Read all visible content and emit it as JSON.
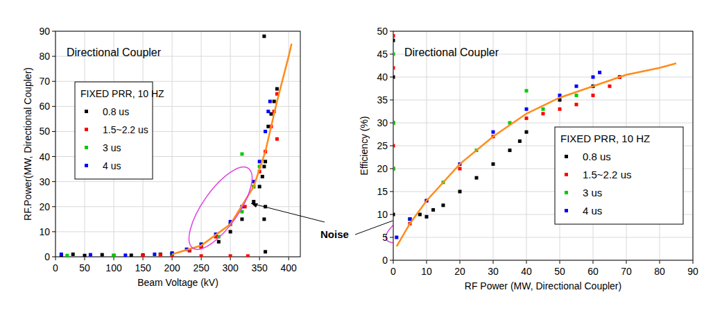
{
  "chart_data": [
    {
      "type": "scatter",
      "title": "Directional Coupler",
      "x_label": "Beam Voltage (kV)",
      "y_label": "RF.Power(MW, Directional Coupler)",
      "legend_title": "FIXED PRR, 10 HZ",
      "legend": "upper left",
      "grid": true,
      "annotations": [
        "Noise"
      ],
      "xlim": [
        0,
        420
      ],
      "xticks": [
        0,
        50,
        100,
        150,
        200,
        250,
        300,
        350,
        400
      ],
      "ylim": [
        0,
        90
      ],
      "yticks": [
        0,
        10,
        20,
        30,
        40,
        50,
        60,
        70,
        80,
        90
      ],
      "series": [
        {
          "name": "0.8 us",
          "color": "#000000",
          "marker": "square",
          "x": [
            10,
            30,
            50,
            80,
            100,
            130,
            150,
            180,
            200,
            230,
            250,
            280,
            300,
            320,
            340,
            350,
            355,
            358,
            360,
            360,
            358,
            360,
            365,
            370,
            375,
            380,
            358
          ],
          "values": [
            0.5,
            1,
            0.5,
            0.8,
            0.5,
            0.6,
            0.7,
            1,
            1.2,
            2.5,
            4,
            6,
            10,
            15,
            22,
            28,
            32,
            36,
            38,
            20,
            15,
            2,
            52,
            57,
            62,
            67,
            88
          ]
        },
        {
          "name": "1.5~2.2 us",
          "color": "#ff0000",
          "marker": "square",
          "x": [
            150,
            180,
            200,
            230,
            250,
            275,
            300,
            325,
            340,
            350,
            360,
            370,
            375,
            380,
            380,
            150,
            200,
            250,
            300,
            330
          ],
          "values": [
            0.5,
            0.8,
            1,
            2.5,
            4,
            8,
            13,
            20,
            28,
            34,
            42,
            52,
            58,
            65,
            47,
            0.2,
            0.2,
            0.3,
            0.3,
            0.3
          ]
        },
        {
          "name": "3 us",
          "color": "#00cc00",
          "marker": "square",
          "x": [
            20,
            100,
            200,
            250,
            280,
            300,
            320,
            340,
            350,
            320
          ],
          "values": [
            0.5,
            0.5,
            1.2,
            5,
            8,
            13,
            18,
            28,
            36,
            41
          ]
        },
        {
          "name": "4 us",
          "color": "#0000ff",
          "marker": "square",
          "x": [
            10,
            60,
            120,
            170,
            200,
            225,
            250,
            275,
            300,
            320,
            340,
            350,
            360,
            365,
            368
          ],
          "values": [
            1,
            0.8,
            0.6,
            1,
            1.5,
            3,
            5,
            9,
            14,
            20,
            30,
            38,
            50,
            58,
            62
          ]
        },
        {
          "type": "line",
          "color": "#ff8c1a",
          "line_style": "solid",
          "x": [
            200,
            250,
            300,
            340,
            360,
            380,
            400,
            405
          ],
          "values": [
            1,
            4.5,
            13,
            28,
            42,
            62,
            80,
            85
          ]
        }
      ]
    },
    {
      "type": "scatter",
      "title": "Directional Coupler",
      "x_label": "RF Power (MW, Directional Coupler)",
      "y_label": "Efficiency (%)",
      "legend_title": "FIXED PRR, 10 HZ",
      "legend": "center right",
      "grid": true,
      "xlim": [
        0,
        90
      ],
      "xticks": [
        0,
        10,
        20,
        30,
        40,
        50,
        60,
        70,
        80,
        90
      ],
      "ylim": [
        0,
        50
      ],
      "yticks": [
        0,
        5,
        10,
        15,
        20,
        25,
        30,
        35,
        40,
        45,
        50
      ],
      "series": [
        {
          "name": "0.8 us",
          "color": "#000000",
          "marker": "square",
          "x": [
            0,
            0,
            0,
            0,
            0,
            5,
            8,
            10,
            12,
            15,
            20,
            25,
            30,
            35,
            38,
            40,
            50,
            60,
            68
          ],
          "values": [
            48,
            40,
            30,
            20,
            10,
            9,
            10,
            9.5,
            11,
            12,
            15,
            18,
            21,
            24,
            26,
            28,
            35,
            38,
            40
          ]
        },
        {
          "name": "1.5~2.2 us",
          "color": "#ff0000",
          "marker": "square",
          "x": [
            0,
            0,
            0,
            5,
            10,
            20,
            30,
            40,
            45,
            50,
            55,
            60,
            65,
            68
          ],
          "values": [
            49,
            42,
            25,
            8,
            13,
            20,
            27,
            31,
            32,
            33,
            34,
            36,
            38,
            40
          ]
        },
        {
          "name": "3 us",
          "color": "#00cc00",
          "marker": "square",
          "x": [
            0,
            0,
            0,
            5,
            15,
            25,
            35,
            40,
            45,
            55
          ],
          "values": [
            45,
            30,
            20,
            9,
            17,
            24,
            30,
            37,
            33,
            36
          ]
        },
        {
          "name": "4 us",
          "color": "#0000ff",
          "marker": "square",
          "x": [
            1,
            5,
            10,
            20,
            30,
            40,
            50,
            55,
            60,
            62
          ],
          "values": [
            5,
            9,
            13,
            21,
            28,
            33,
            36,
            38,
            40,
            41
          ]
        },
        {
          "type": "line",
          "color": "#ff8c1a",
          "line_style": "solid",
          "x": [
            1,
            5,
            10,
            20,
            30,
            40,
            50,
            60,
            70,
            80,
            85
          ],
          "values": [
            3,
            8,
            13,
            21,
            27,
            32,
            35.5,
            38,
            40.5,
            42,
            43
          ]
        }
      ]
    }
  ]
}
